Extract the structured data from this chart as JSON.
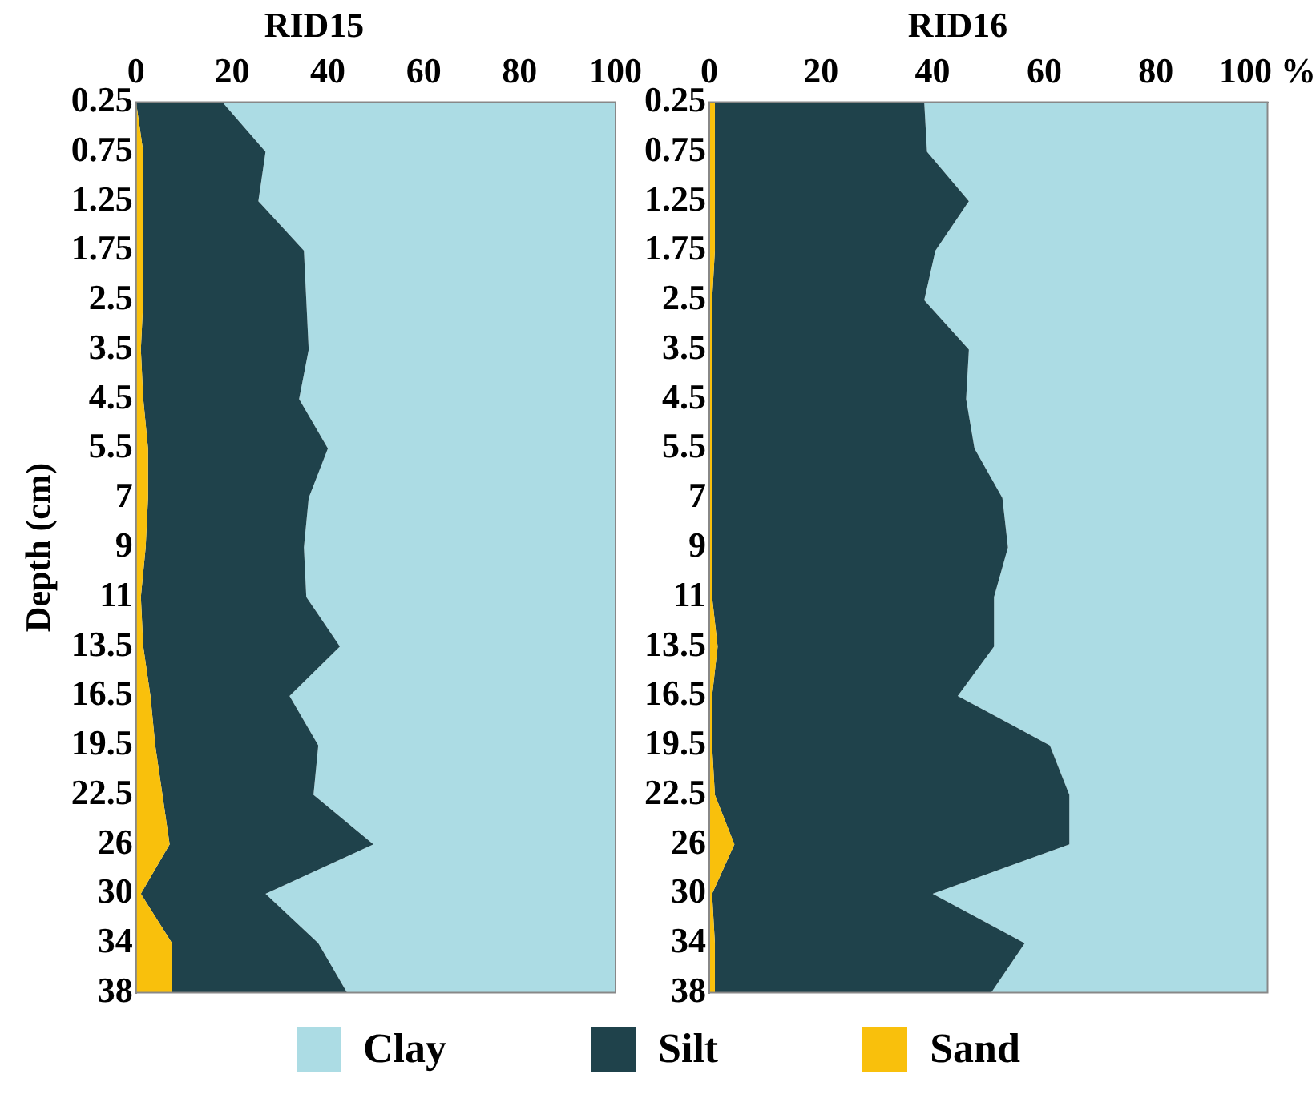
{
  "chart_data": [
    {
      "type": "area",
      "title": "RID15",
      "ylabel": "Depth (cm)",
      "orientation": "horizontal",
      "stacked": true,
      "grid": false,
      "legend": "bottom",
      "categories": [
        "0.25",
        "0.75",
        "1.25",
        "1.75",
        "2.5",
        "3.5",
        "4.5",
        "5.5",
        "7",
        "9",
        "11",
        "13.5",
        "16.5",
        "19.5",
        "22.5",
        "26",
        "30",
        "34",
        "38"
      ],
      "xlim": [
        0,
        100
      ],
      "xticks": [
        0,
        20,
        40,
        60,
        80,
        100
      ],
      "series": [
        {
          "name": "Sand",
          "color": "#f9c00c",
          "values": [
            0,
            1.5,
            1.5,
            1.5,
            1.5,
            1,
            1.5,
            2.5,
            2.5,
            2,
            1,
            1.5,
            3,
            4,
            5.5,
            7,
            1,
            7.5,
            7.5
          ]
        },
        {
          "name": "Silt",
          "color": "#1f424b",
          "values": [
            18,
            25.5,
            24,
            33.5,
            34,
            35,
            32.5,
            37.5,
            33.5,
            33,
            34.5,
            41,
            29,
            34,
            31.5,
            42.5,
            26,
            30.5,
            36.5
          ]
        },
        {
          "name": "Clay",
          "color": "#acdce4",
          "values": [
            82,
            73,
            74.5,
            65,
            64.5,
            64,
            66,
            60,
            64,
            65,
            64.5,
            57.5,
            68,
            62,
            63,
            50.5,
            73,
            62,
            56
          ]
        }
      ]
    },
    {
      "type": "area",
      "title": "RID16",
      "orientation": "horizontal",
      "stacked": true,
      "grid": false,
      "legend": "bottom",
      "categories": [
        "0.25",
        "0.75",
        "1.25",
        "1.75",
        "2.5",
        "3.5",
        "4.5",
        "5.5",
        "7",
        "9",
        "11",
        "13.5",
        "16.5",
        "19.5",
        "22.5",
        "26",
        "30",
        "34",
        "38"
      ],
      "xlim": [
        0,
        100
      ],
      "xticks": [
        0,
        20,
        40,
        60,
        80,
        {
          "value": 100,
          "label": "100 %"
        }
      ],
      "series": [
        {
          "name": "Sand",
          "color": "#f9c00c",
          "values": [
            1,
            1,
            1,
            1,
            0.5,
            0.5,
            0.5,
            0.5,
            0.5,
            0.5,
            0.5,
            1.5,
            0.5,
            0.5,
            1,
            4.5,
            0.5,
            1,
            1
          ]
        },
        {
          "name": "Silt",
          "color": "#1f424b",
          "values": [
            37.5,
            38,
            45.5,
            39.5,
            38,
            46,
            45.5,
            47,
            52,
            53,
            50.5,
            49.5,
            44,
            60.5,
            63.5,
            60,
            39.5,
            55.5,
            49.5
          ]
        },
        {
          "name": "Clay",
          "color": "#acdce4",
          "values": [
            61.5,
            61,
            53.5,
            59.5,
            61.5,
            53.5,
            54,
            52.5,
            47.5,
            46.5,
            49,
            49,
            55.5,
            39,
            35.5,
            35.5,
            60,
            43.5,
            49.5
          ]
        }
      ]
    }
  ]
}
